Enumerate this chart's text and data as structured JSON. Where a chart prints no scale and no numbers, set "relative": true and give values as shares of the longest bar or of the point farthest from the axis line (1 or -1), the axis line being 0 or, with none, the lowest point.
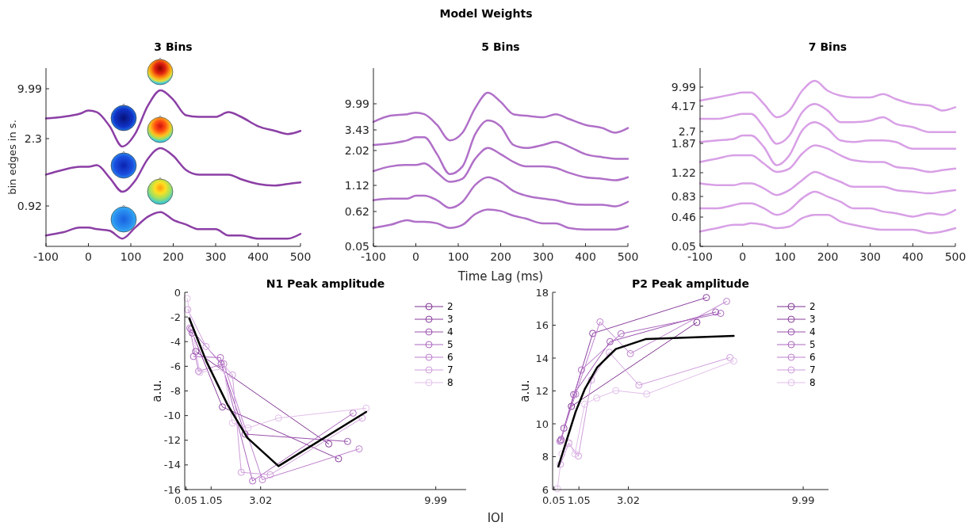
{
  "chart_data": [
    {
      "type": "line",
      "title": "3 Bins",
      "ylabel": "bin edges in s.",
      "relative": true,
      "x": [
        -100,
        -60,
        -20,
        0,
        20,
        50,
        80,
        110,
        140,
        170,
        200,
        230,
        260,
        300,
        330,
        360,
        400,
        440,
        470,
        500
      ],
      "xlim": [
        -100,
        500
      ],
      "xticks": [
        -100,
        0,
        100,
        200,
        300,
        400,
        500
      ],
      "marker": "none",
      "annotations": [
        "0.92",
        "2.3",
        "9.99",
        "Model Weights"
      ],
      "series": [
        {
          "color": "#8b3fa5",
          "values": [
            0.82,
            0.83,
            0.85,
            0.87,
            0.86,
            0.77,
            0.64,
            0.72,
            0.9,
            1,
            0.94,
            0.84,
            0.83,
            0.83,
            0.86,
            0.83,
            0.77,
            0.74,
            0.72,
            0.74
          ]
        },
        {
          "color": "#8b3fa5",
          "values": [
            0.46,
            0.49,
            0.51,
            0.51,
            0.52,
            0.44,
            0.35,
            0.42,
            0.56,
            0.63,
            0.58,
            0.49,
            0.46,
            0.46,
            0.46,
            0.43,
            0.4,
            0.39,
            0.4,
            0.41
          ]
        },
        {
          "color": "#8b3fa5",
          "values": [
            0.07,
            0.09,
            0.12,
            0.12,
            0.11,
            0.1,
            0.05,
            0.12,
            0.19,
            0.22,
            0.17,
            0.14,
            0.11,
            0.11,
            0.07,
            0.07,
            0.05,
            0.05,
            0.05,
            0.08
          ]
        }
      ]
    },
    {
      "type": "line",
      "title": "5 Bins",
      "xlabel": "Time Lag (ms)",
      "relative": true,
      "x": [
        -100,
        -60,
        -20,
        0,
        20,
        50,
        80,
        110,
        140,
        170,
        200,
        230,
        260,
        300,
        330,
        360,
        400,
        440,
        470,
        500
      ],
      "xlim": [
        -100,
        500
      ],
      "xticks": [
        -100,
        0,
        100,
        200,
        300,
        400,
        500
      ],
      "marker": "none",
      "annotations": [
        "0.05",
        "0.62",
        "1.12",
        "2.02",
        "3.43",
        "9.99"
      ],
      "series": [
        {
          "color": "#b070c8",
          "values": [
            0.81,
            0.85,
            0.86,
            0.87,
            0.86,
            0.79,
            0.69,
            0.74,
            0.9,
            1,
            0.94,
            0.86,
            0.85,
            0.84,
            0.86,
            0.83,
            0.79,
            0.77,
            0.74,
            0.77
          ]
        },
        {
          "color": "#b070c8",
          "values": [
            0.66,
            0.67,
            0.69,
            0.71,
            0.71,
            0.6,
            0.47,
            0.52,
            0.73,
            0.82,
            0.78,
            0.66,
            0.64,
            0.66,
            0.68,
            0.65,
            0.6,
            0.58,
            0.57,
            0.57
          ]
        },
        {
          "color": "#b070c8",
          "values": [
            0.49,
            0.52,
            0.53,
            0.53,
            0.54,
            0.48,
            0.42,
            0.44,
            0.57,
            0.64,
            0.6,
            0.55,
            0.52,
            0.52,
            0.51,
            0.48,
            0.45,
            0.44,
            0.43,
            0.45
          ]
        },
        {
          "color": "#b070c8",
          "values": [
            0.3,
            0.31,
            0.31,
            0.33,
            0.33,
            0.3,
            0.25,
            0.29,
            0.4,
            0.45,
            0.42,
            0.36,
            0.33,
            0.31,
            0.3,
            0.28,
            0.27,
            0.27,
            0.26,
            0.29
          ]
        },
        {
          "color": "#b070c8",
          "values": [
            0.12,
            0.14,
            0.17,
            0.16,
            0.16,
            0.15,
            0.12,
            0.14,
            0.21,
            0.24,
            0.23,
            0.2,
            0.18,
            0.15,
            0.15,
            0.12,
            0.11,
            0.11,
            0.11,
            0.13
          ]
        }
      ]
    },
    {
      "type": "line",
      "title": "7 Bins",
      "relative": true,
      "x": [
        -100,
        -60,
        -20,
        0,
        20,
        50,
        80,
        110,
        140,
        170,
        200,
        230,
        260,
        300,
        330,
        360,
        400,
        440,
        470,
        500
      ],
      "xlim": [
        -100,
        500
      ],
      "xticks": [
        -100,
        0,
        100,
        200,
        300,
        400,
        500
      ],
      "marker": "none",
      "annotations": [
        "0.05",
        "0.46",
        "0.83",
        "1.22",
        "1.87",
        "2.7",
        "4.17",
        "9.99"
      ],
      "series": [
        {
          "color": "#d8a0e6",
          "values": [
            0.88,
            0.9,
            0.92,
            0.93,
            0.93,
            0.86,
            0.78,
            0.82,
            0.94,
            1,
            0.94,
            0.91,
            0.9,
            0.9,
            0.92,
            0.89,
            0.86,
            0.85,
            0.82,
            0.84
          ]
        },
        {
          "color": "#d8a0e6",
          "values": [
            0.77,
            0.77,
            0.79,
            0.8,
            0.8,
            0.72,
            0.62,
            0.67,
            0.81,
            0.86,
            0.82,
            0.75,
            0.75,
            0.76,
            0.78,
            0.74,
            0.72,
            0.69,
            0.69,
            0.69
          ]
        },
        {
          "color": "#d8a0e6",
          "values": [
            0.63,
            0.64,
            0.65,
            0.67,
            0.67,
            0.6,
            0.49,
            0.55,
            0.7,
            0.75,
            0.71,
            0.64,
            0.63,
            0.64,
            0.64,
            0.63,
            0.59,
            0.59,
            0.59,
            0.59
          ]
        },
        {
          "color": "#d8a0e6",
          "values": [
            0.51,
            0.53,
            0.55,
            0.55,
            0.55,
            0.5,
            0.45,
            0.47,
            0.56,
            0.61,
            0.59,
            0.55,
            0.52,
            0.51,
            0.51,
            0.48,
            0.47,
            0.45,
            0.46,
            0.47
          ]
        },
        {
          "color": "#d8a0e6",
          "values": [
            0.38,
            0.37,
            0.37,
            0.38,
            0.38,
            0.35,
            0.31,
            0.34,
            0.4,
            0.45,
            0.42,
            0.39,
            0.36,
            0.36,
            0.36,
            0.34,
            0.33,
            0.32,
            0.33,
            0.34
          ]
        },
        {
          "color": "#d8a0e6",
          "values": [
            0.23,
            0.23,
            0.25,
            0.26,
            0.26,
            0.23,
            0.19,
            0.22,
            0.29,
            0.33,
            0.3,
            0.27,
            0.23,
            0.23,
            0.21,
            0.2,
            0.18,
            0.2,
            0.19,
            0.22
          ]
        },
        {
          "color": "#d8a0e6",
          "values": [
            0.09,
            0.11,
            0.13,
            0.13,
            0.14,
            0.13,
            0.11,
            0.12,
            0.17,
            0.19,
            0.19,
            0.15,
            0.13,
            0.11,
            0.1,
            0.1,
            0.1,
            0.08,
            0.09,
            0.11
          ]
        }
      ]
    },
    {
      "type": "line",
      "title": "N1 Peak amplitude",
      "ylabel": "a.u.",
      "xlim": [
        0,
        11.2
      ],
      "xticks": [
        0.05,
        1.05,
        3.02,
        9.99
      ],
      "ylim": [
        -16,
        0
      ],
      "yticks": [
        -16,
        -14,
        -12,
        -10,
        -8,
        -6,
        -4,
        -2,
        0
      ],
      "marker": "circle",
      "legend": "right",
      "series": [
        {
          "name": "2",
          "color": "#7d3190",
          "x": [
            0.44,
            5.73
          ],
          "values": [
            -4.8,
            -12.3
          ]
        },
        {
          "name": "3",
          "color": "#8a3f9e",
          "x": [
            0.3,
            1.5,
            6.12
          ],
          "values": [
            -3.3,
            -9.3,
            -13.5
          ]
        },
        {
          "name": "4",
          "color": "#9a52ae",
          "x": [
            0.25,
            1.45,
            2.4,
            6.48
          ],
          "values": [
            -3.0,
            -5.8,
            -11.5,
            -12.1
          ]
        },
        {
          "name": "5",
          "color": "#ab66be",
          "x": [
            0.35,
            1.42,
            2.7,
            6.7
          ],
          "values": [
            -5.2,
            -5.3,
            -15.3,
            -9.8
          ]
        },
        {
          "name": "6",
          "color": "#bd7fcd",
          "x": [
            0.2,
            0.55,
            1.55,
            3.09,
            6.94
          ],
          "values": [
            -2.9,
            -6.4,
            -5.8,
            -15.2,
            -12.7
          ]
        },
        {
          "name": "7",
          "color": "#cf9ddc",
          "x": [
            0.12,
            0.85,
            1.9,
            2.25,
            3.4,
            7.06
          ],
          "values": [
            -1.4,
            -4.4,
            -6.7,
            -14.6,
            -14.8,
            -10.2
          ]
        },
        {
          "name": "8",
          "color": "#e2bfea",
          "x": [
            0.1,
            0.6,
            1.55,
            1.9,
            2.52,
            3.73,
            7.22
          ],
          "values": [
            -0.5,
            -6.5,
            -6.2,
            -10.6,
            -11.0,
            -10.2,
            -9.4
          ]
        },
        {
          "color": "#000000",
          "marker": "none",
          "x": [
            0.18,
            0.86,
            1.7,
            2.49,
            3.73,
            7.22
          ],
          "values": [
            -2.1,
            -5.6,
            -9.1,
            -11.8,
            -14.1,
            -9.7
          ]
        }
      ]
    },
    {
      "type": "line",
      "title": "P2 Peak amplitude",
      "ylabel": "a.u.",
      "xlabel": "IOI",
      "xlim": [
        0,
        11
      ],
      "xticks": [
        0.05,
        1.05,
        3.02,
        9.99
      ],
      "ylim": [
        6,
        18
      ],
      "yticks": [
        6,
        8,
        10,
        12,
        14,
        16,
        18
      ],
      "marker": "circle",
      "legend": "right",
      "series": [
        {
          "name": "2",
          "color": "#7d3190",
          "x": [
            0.75,
            5.75
          ],
          "values": [
            11.06,
            16.17
          ]
        },
        {
          "name": "3",
          "color": "#8a3f9e",
          "x": [
            0.45,
            1.6,
            6.13
          ],
          "values": [
            9.73,
            15.5,
            17.68
          ]
        },
        {
          "name": "4",
          "color": "#9a52ae",
          "x": [
            0.34,
            0.84,
            2.29,
            6.5
          ],
          "values": [
            9.05,
            11.78,
            15.0,
            16.8
          ]
        },
        {
          "name": "5",
          "color": "#ab66be",
          "x": [
            0.33,
            1.15,
            2.73,
            6.7
          ],
          "values": [
            8.97,
            13.28,
            15.48,
            16.72
          ]
        },
        {
          "name": "6",
          "color": "#bd7fcd",
          "x": [
            0.29,
            0.92,
            1.89,
            3.1,
            6.94
          ],
          "values": [
            8.94,
            11.8,
            16.2,
            14.27,
            17.45
          ]
        },
        {
          "name": "7",
          "color": "#cf9ddc",
          "x": [
            0.31,
            0.65,
            1.03,
            1.55,
            2.26,
            3.44,
            7.07
          ],
          "values": [
            7.53,
            8.81,
            8.04,
            12.67,
            14.35,
            12.35,
            14.03
          ]
        },
        {
          "name": "8",
          "color": "#e2bfea",
          "x": [
            0.19,
            0.37,
            0.65,
            0.89,
            1.28,
            1.76,
            2.52,
            3.75,
            7.22
          ],
          "values": [
            6.05,
            8.17,
            8.85,
            8.17,
            11.19,
            11.57,
            12.02,
            11.81,
            13.82
          ]
        },
        {
          "color": "#000000",
          "marker": "none",
          "x": [
            0.23,
            0.92,
            1.28,
            1.78,
            2.52,
            3.73,
            7.22
          ],
          "values": [
            7.4,
            10.74,
            12.1,
            13.44,
            14.55,
            15.16,
            15.35
          ]
        }
      ]
    }
  ]
}
